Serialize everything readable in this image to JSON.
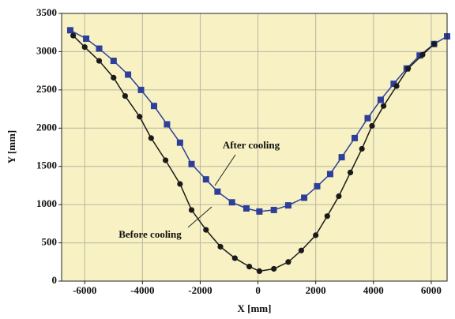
{
  "chart_data": {
    "type": "line",
    "x_label": "X [mm]",
    "y_label": "Y [mm]",
    "xlim": [
      -6800,
      6550
    ],
    "ylim": [
      0,
      3500
    ],
    "xticks": [
      -6000,
      -4000,
      -2000,
      0,
      2000,
      4000,
      6000
    ],
    "yticks": [
      0,
      500,
      1000,
      1500,
      2000,
      2500,
      3000,
      3500
    ],
    "grid": true,
    "annotations": [
      "After cooling",
      "Before cooling"
    ],
    "series": [
      {
        "name": "After cooling",
        "color": "#2e3f9a",
        "marker": "square",
        "x": [
          -6500,
          -5950,
          -5500,
          -5000,
          -4500,
          -4050,
          -3600,
          -3150,
          -2700,
          -2300,
          -1800,
          -1400,
          -900,
          -400,
          50,
          550,
          1050,
          1600,
          2050,
          2500,
          2900,
          3350,
          3800,
          4250,
          4700,
          5150,
          5600,
          6100,
          6550
        ],
        "values": [
          3280,
          3170,
          3040,
          2880,
          2700,
          2500,
          2290,
          2050,
          1810,
          1530,
          1330,
          1170,
          1030,
          950,
          910,
          930,
          990,
          1090,
          1240,
          1400,
          1620,
          1870,
          2130,
          2370,
          2580,
          2780,
          2950,
          3100,
          3200
        ]
      },
      {
        "name": "Before cooling",
        "color": "#1a1a1a",
        "marker": "circle",
        "x": [
          -6400,
          -6000,
          -5500,
          -5000,
          -4600,
          -4100,
          -3700,
          -3200,
          -2700,
          -2300,
          -1800,
          -1300,
          -800,
          -300,
          50,
          550,
          1050,
          1500,
          2000,
          2400,
          2800,
          3200,
          3600,
          3950,
          4350,
          4800,
          5200,
          5700,
          6100
        ],
        "values": [
          3210,
          3060,
          2880,
          2660,
          2420,
          2150,
          1870,
          1580,
          1270,
          930,
          670,
          450,
          300,
          190,
          130,
          160,
          250,
          400,
          600,
          850,
          1110,
          1420,
          1730,
          2030,
          2290,
          2550,
          2780,
          2960,
          3100
        ]
      }
    ]
  }
}
